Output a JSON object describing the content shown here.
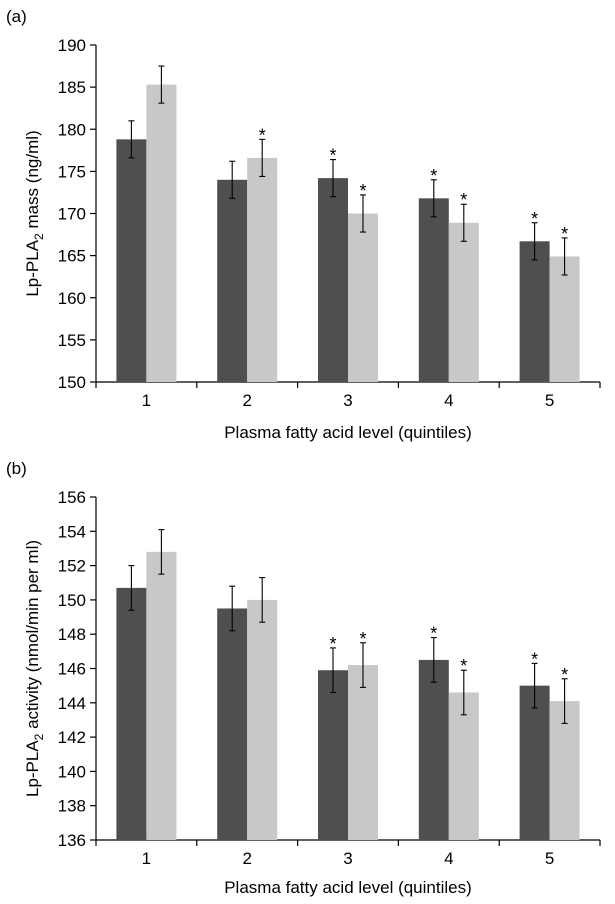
{
  "chart_data": [
    {
      "type": "bar",
      "panel_label": "(a)",
      "xlabel": "Plasma fatty acid level (quintiles)",
      "ylabel_main": "Lp-PLA",
      "ylabel_sub": "2",
      "ylabel_rest": " mass (ng/ml)",
      "ylim": [
        150,
        190
      ],
      "yticks": [
        150,
        155,
        160,
        165,
        170,
        175,
        180,
        185,
        190
      ],
      "categories": [
        "1",
        "2",
        "3",
        "4",
        "5"
      ],
      "series": [
        {
          "color": "#4f4f4f",
          "values": [
            178.8,
            174.0,
            174.2,
            171.8,
            166.7
          ],
          "errors": [
            2.2,
            2.2,
            2.2,
            2.2,
            2.2
          ],
          "significant": [
            false,
            false,
            true,
            true,
            true
          ]
        },
        {
          "color": "#c8c8c8",
          "values": [
            185.3,
            176.6,
            170.0,
            168.9,
            164.9
          ],
          "errors": [
            2.2,
            2.2,
            2.2,
            2.2,
            2.2
          ],
          "significant": [
            false,
            true,
            true,
            true,
            true
          ]
        }
      ],
      "marker": "*"
    },
    {
      "type": "bar",
      "panel_label": "(b)",
      "xlabel": "Plasma fatty acid level (quintiles)",
      "ylabel_main": "Lp-PLA",
      "ylabel_sub": "2",
      "ylabel_rest": " activity (nmol/min per ml)",
      "ylim": [
        136,
        156
      ],
      "yticks": [
        136,
        138,
        140,
        142,
        144,
        146,
        148,
        150,
        152,
        154,
        156
      ],
      "categories": [
        "1",
        "2",
        "3",
        "4",
        "5"
      ],
      "series": [
        {
          "color": "#4f4f4f",
          "values": [
            150.7,
            149.5,
            145.9,
            146.5,
            145.0
          ],
          "errors": [
            1.3,
            1.3,
            1.3,
            1.3,
            1.3
          ],
          "significant": [
            false,
            false,
            true,
            true,
            true
          ]
        },
        {
          "color": "#c8c8c8",
          "values": [
            152.8,
            150.0,
            146.2,
            144.6,
            144.1
          ],
          "errors": [
            1.3,
            1.3,
            1.3,
            1.3,
            1.3
          ],
          "significant": [
            false,
            false,
            true,
            true,
            true
          ]
        }
      ],
      "marker": "*"
    }
  ]
}
